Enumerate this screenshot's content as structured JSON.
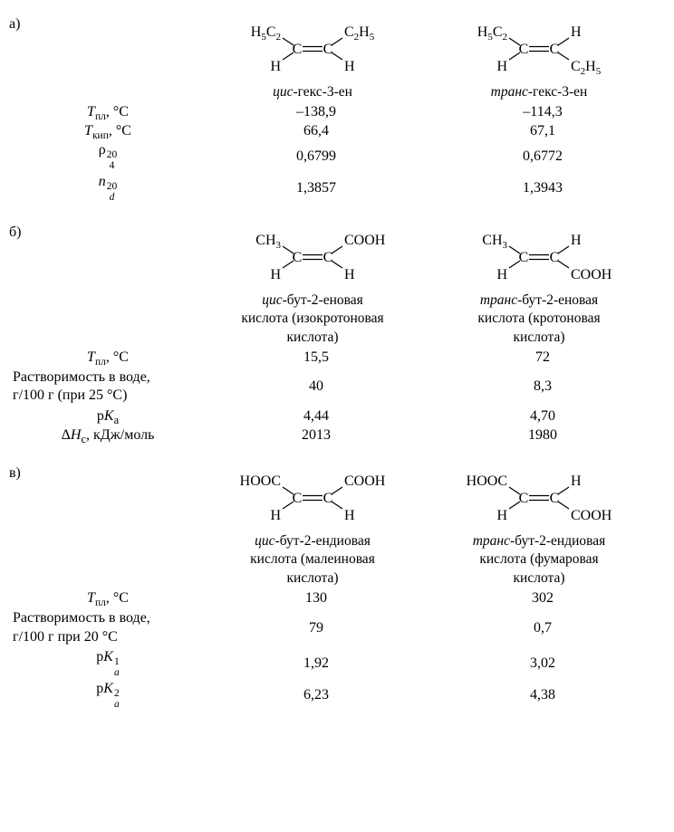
{
  "sections": {
    "a": {
      "tag": "а)",
      "cis": {
        "name_html": "<span class='it'>цис</span>-гекс-3-ен",
        "subst": {
          "tl": "H5C2",
          "tr": "C2H5",
          "bl": "H",
          "br": "H"
        }
      },
      "trans": {
        "name_html": "<span class='it'>транс</span>-гекс-3-ен",
        "subst": {
          "tl": "H5C2",
          "tr": "H",
          "bl": "H",
          "br": "C2H5"
        }
      },
      "props": [
        {
          "label_html": "<span class='it'>T</span><sub>пл</sub>, °C",
          "cis": "–138,9",
          "trans": "–114,3"
        },
        {
          "label_html": "<span class='it'>T</span><sub>кип</sub>, °C",
          "cis": "66,4",
          "trans": "67,1"
        },
        {
          "label_html": "ρ<span class='supsub'><span>20</span><span>4</span></span>",
          "cis": "0,6799",
          "trans": "0,6772"
        },
        {
          "label_html": "<span class='it'>n</span><span class='supsub'><span>20</span><span class='it'>d</span></span>",
          "cis": "1,3857",
          "trans": "1,3943"
        }
      ]
    },
    "b": {
      "tag": "б)",
      "cis": {
        "name_html": "<span class='it'>цис</span>-бут-2-еновая<br>кислота (изокротоновая<br>кислота)",
        "subst": {
          "tl": "CH3",
          "tr": "COOH",
          "bl": "H",
          "br": "H"
        }
      },
      "trans": {
        "name_html": "<span class='it'>транс</span>-бут-2-еновая<br>кислота (кротоновая<br>кислота)",
        "subst": {
          "tl": "CH3",
          "tr": "H",
          "bl": "H",
          "br": "COOH"
        }
      },
      "props": [
        {
          "label_html": "<span class='it'>T</span><sub>пл</sub>, °C",
          "cis": "15,5",
          "trans": "72"
        },
        {
          "label_html": "Растворимость в воде,<br>г/100 г (при 25 °C)",
          "cis": "40",
          "trans": "8,3"
        },
        {
          "label_html": "p<span class='it'>K<sub class='isub'>a</sub></span>",
          "cis": "4,44",
          "trans": "4,70"
        },
        {
          "label_html": "Δ<span class='it'>H<sub class='isub'>c</sub></span>, кДж/моль",
          "cis": "2013",
          "trans": "1980"
        }
      ]
    },
    "c": {
      "tag": "в)",
      "cis": {
        "name_html": "<span class='it'>цис</span>-бут-2-ендиовая<br>кислота (малеиновая<br>кислота)",
        "subst": {
          "tl": "HOOC",
          "tr": "COOH",
          "bl": "H",
          "br": "H"
        }
      },
      "trans": {
        "name_html": "<span class='it'>транс</span>-бут-2-ендиовая<br>кислота (фумаровая<br>кислота)",
        "subst": {
          "tl": "HOOC",
          "tr": "H",
          "bl": "H",
          "br": "COOH"
        }
      },
      "props": [
        {
          "label_html": "<span class='it'>T</span><sub>пл</sub>, °C",
          "cis": "130",
          "trans": "302"
        },
        {
          "label_html": "Растворимость в воде,<br>г/100 г при 20 °C",
          "cis": "79",
          "trans": "0,7"
        },
        {
          "label_html": "p<span class='it'>K</span><span class='supsub'><span>1</span><span class='it'>a</span></span>",
          "cis": "1,92",
          "trans": "3,02"
        },
        {
          "label_html": "p<span class='it'>K</span><span class='supsub'><span>2</span><span class='it'>a</span></span>",
          "cis": "6,23",
          "trans": "4,38"
        }
      ]
    }
  },
  "style": {
    "line_color": "#000000",
    "line_width": 1.2,
    "font_family": "Georgia, 'Times New Roman', serif",
    "label_align": "center-in-column"
  }
}
